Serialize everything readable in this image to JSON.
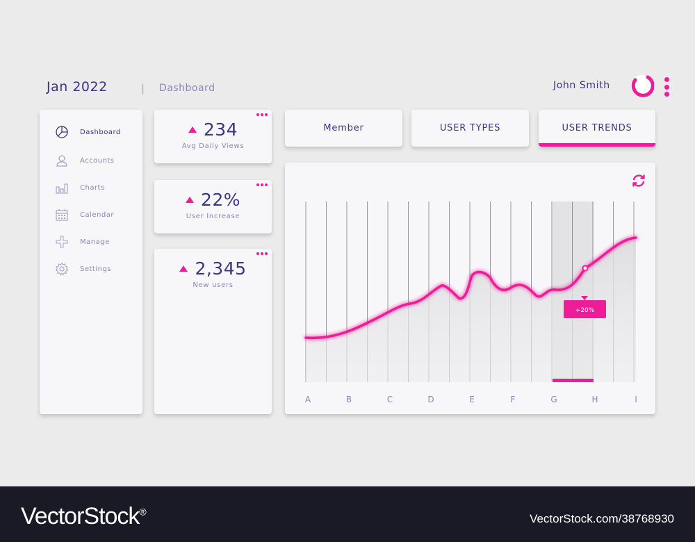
{
  "header": {
    "date": "Jan 2022",
    "separator": "|",
    "page": "Dashboard",
    "user_name": "John Smith"
  },
  "colors": {
    "accent": "#ee1c96",
    "primary": "#3d3585",
    "muted": "#8c86b8"
  },
  "sidebar": {
    "items": [
      {
        "label": "Dashboard",
        "icon": "pie-chart-icon",
        "active": true
      },
      {
        "label": "Accounts",
        "icon": "user-icon",
        "active": false
      },
      {
        "label": "Charts",
        "icon": "bar-chart-icon",
        "active": false
      },
      {
        "label": "Calendar",
        "icon": "calendar-icon",
        "active": false
      },
      {
        "label": "Manage",
        "icon": "plus-icon",
        "active": false
      },
      {
        "label": "Settings",
        "icon": "gear-icon",
        "active": false
      }
    ]
  },
  "stats": [
    {
      "value": "234",
      "label": "Avg Daily Views"
    },
    {
      "value": "22%",
      "label": "User Increase"
    },
    {
      "value": "2,345",
      "label": "New users"
    }
  ],
  "tabs": [
    {
      "label": "Member",
      "active": false
    },
    {
      "label": "USER TYPES",
      "active": false
    },
    {
      "label": "USER TRENDS",
      "active": true
    }
  ],
  "chart_data": {
    "type": "line",
    "categories": [
      "A",
      "B",
      "C",
      "D",
      "E",
      "F",
      "G",
      "H",
      "I"
    ],
    "highlight_category": "H",
    "tooltip": "+20%",
    "grid": true
  },
  "footer": {
    "brand": "VectorStock",
    "trademark": "®",
    "image_id": "VectorStock.com/38768930"
  }
}
